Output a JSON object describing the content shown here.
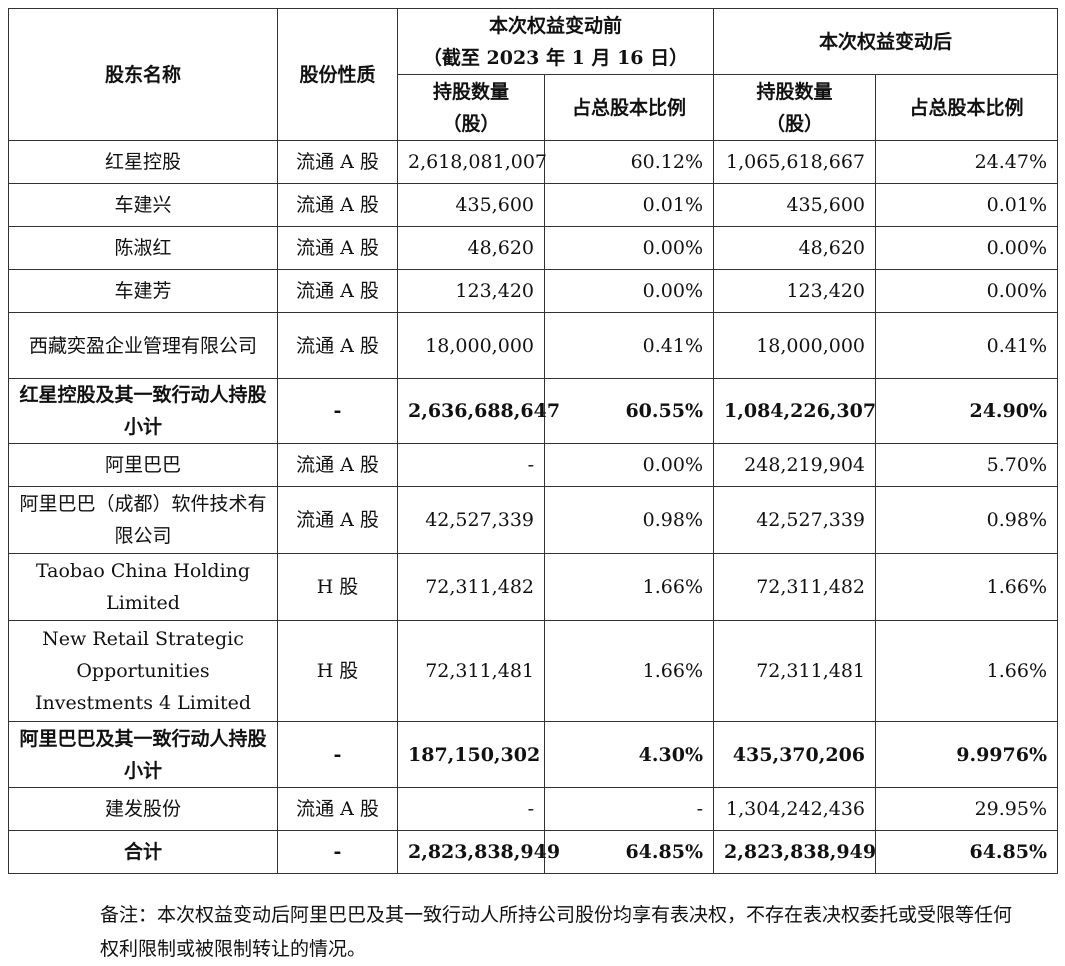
{
  "headers": {
    "name": "股东名称",
    "nature": "股份性质",
    "before_line1": "本次权益变动前",
    "before_line2": "（截至 2023 年 1 月 16 日）",
    "after": "本次权益变动后",
    "shares_line1": "持股数量",
    "shares_line2": "（股）",
    "ratio": "占总股本比例"
  },
  "rows": [
    {
      "name": "红星控股",
      "nature": "流通 A 股",
      "before_shares": "2,618,081,007",
      "before_ratio": "60.12%",
      "after_shares": "1,065,618,667",
      "after_ratio": "24.47%"
    },
    {
      "name": "车建兴",
      "nature": "流通 A 股",
      "before_shares": "435,600",
      "before_ratio": "0.01%",
      "after_shares": "435,600",
      "after_ratio": "0.01%"
    },
    {
      "name": "陈淑红",
      "nature": "流通 A 股",
      "before_shares": "48,620",
      "before_ratio": "0.00%",
      "after_shares": "48,620",
      "after_ratio": "0.00%"
    },
    {
      "name": "车建芳",
      "nature": "流通 A 股",
      "before_shares": "123,420",
      "before_ratio": "0.00%",
      "after_shares": "123,420",
      "after_ratio": "0.00%"
    },
    {
      "name": "西藏奕盈企业管理有限公司",
      "nature": "流通 A 股",
      "before_shares": "18,000,000",
      "before_ratio": "0.41%",
      "after_shares": "18,000,000",
      "after_ratio": "0.41%"
    },
    {
      "name": "红星控股及其一致行动人持股小计",
      "nature": "-",
      "before_shares": "2,636,688,647",
      "before_ratio": "60.55%",
      "after_shares": "1,084,226,307",
      "after_ratio": "24.90%"
    },
    {
      "name": "阿里巴巴",
      "nature": "流通 A 股",
      "before_shares": "-",
      "before_ratio": "0.00%",
      "after_shares": "248,219,904",
      "after_ratio": "5.70%"
    },
    {
      "name": "阿里巴巴（成都）软件技术有限公司",
      "nature": "流通 A 股",
      "before_shares": "42,527,339",
      "before_ratio": "0.98%",
      "after_shares": "42,527,339",
      "after_ratio": "0.98%"
    },
    {
      "name": "Taobao China Holding Limited",
      "nature": "H 股",
      "before_shares": "72,311,482",
      "before_ratio": "1.66%",
      "after_shares": "72,311,482",
      "after_ratio": "1.66%"
    },
    {
      "name": "New Retail Strategic Opportunities Investments 4 Limited",
      "nature": "H 股",
      "before_shares": "72,311,481",
      "before_ratio": "1.66%",
      "after_shares": "72,311,481",
      "after_ratio": "1.66%"
    },
    {
      "name": "阿里巴巴及其一致行动人持股小计",
      "nature": "-",
      "before_shares": "187,150,302",
      "before_ratio": "4.30%",
      "after_shares": "435,370,206",
      "after_ratio": "9.9976%"
    },
    {
      "name": "建发股份",
      "nature": "流通 A 股",
      "before_shares": "-",
      "before_ratio": "-",
      "after_shares": "1,304,242,436",
      "after_ratio": "29.95%"
    },
    {
      "name": "合计",
      "nature": "-",
      "before_shares": "2,823,838,949",
      "before_ratio": "64.85%",
      "after_shares": "2,823,838,949",
      "after_ratio": "64.85%"
    }
  ],
  "note": "备注：本次权益变动后阿里巴巴及其一致行动人所持公司股份均享有表决权，不存在表决权委托或受限等任何权利限制或被限制转让的情况。"
}
